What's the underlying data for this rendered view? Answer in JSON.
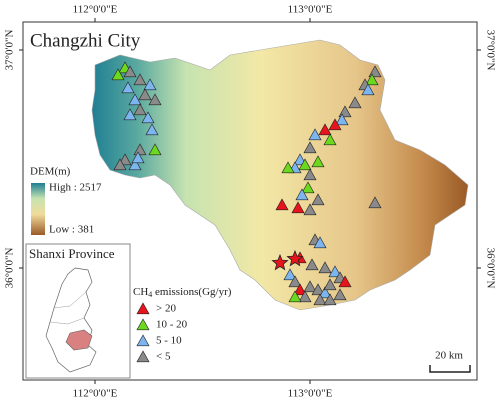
{
  "title": "Changzhi City",
  "graticule": {
    "lon": [
      "112°0'0\"E",
      "113°0'0\"E"
    ],
    "lat": [
      "37°0'0\"N",
      "36°0'0\"N"
    ]
  },
  "dem_legend": {
    "title": "DEM(m)",
    "high": "High : 2517",
    "low": "Low : 381"
  },
  "inset": {
    "title": "Shanxi Province"
  },
  "emissions_legend": {
    "title_main": "CH",
    "title_sub": "4",
    "title_rest": " emissions(Gg/yr)",
    "classes": [
      "> 20",
      "10 - 20",
      "5 - 10",
      "< 5"
    ]
  },
  "scale_bar": "20 km"
}
